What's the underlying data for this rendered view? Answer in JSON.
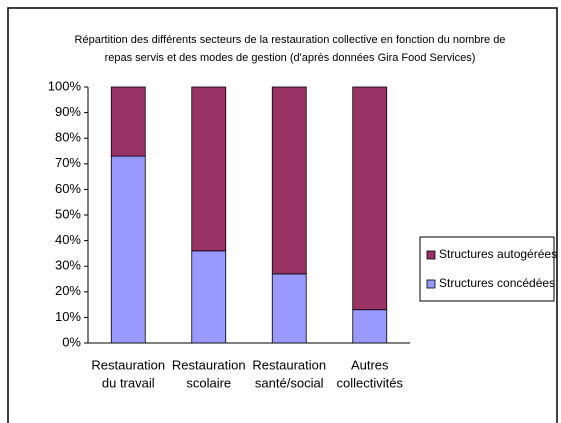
{
  "chart_data": {
    "type": "stacked_bar",
    "title": [
      "Répartition des différents secteurs de la restauration collective en fonction du nombre de",
      "repas servis et des modes de gestion (d'après données Gira Food Services)"
    ],
    "categories": [
      [
        "Restauration",
        "du travail"
      ],
      [
        "Restauration",
        "scolaire"
      ],
      [
        "Restauration",
        "santé/social"
      ],
      [
        "Autres",
        "collectivités"
      ]
    ],
    "series": [
      {
        "name": "Structures concédées",
        "color": "#9999ff",
        "values": [
          73,
          36,
          27,
          13
        ]
      },
      {
        "name": "Structures autogérées",
        "color": "#993366",
        "values": [
          27,
          64,
          73,
          87
        ]
      }
    ],
    "ylim": [
      0,
      100
    ],
    "yticks": [
      {
        "value": 0,
        "label": "0%"
      },
      {
        "value": 10,
        "label": "10%"
      },
      {
        "value": 20,
        "label": "20%"
      },
      {
        "value": 30,
        "label": "30%"
      },
      {
        "value": 40,
        "label": "40%"
      },
      {
        "value": 50,
        "label": "50%"
      },
      {
        "value": 60,
        "label": "60%"
      },
      {
        "value": 70,
        "label": "70%"
      },
      {
        "value": 80,
        "label": "80%"
      },
      {
        "value": 90,
        "label": "90%"
      },
      {
        "value": 100,
        "label": "100%"
      }
    ],
    "legend": "right"
  }
}
